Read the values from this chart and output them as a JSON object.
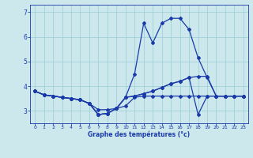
{
  "xlabel": "Graphe des températures (°c)",
  "background_color": "#cce8ec",
  "grid_color": "#99ccd4",
  "line_color": "#1a3aaa",
  "xlim": [
    -0.5,
    23.5
  ],
  "ylim": [
    2.5,
    7.3
  ],
  "yticks": [
    3,
    4,
    5,
    6,
    7
  ],
  "xticks": [
    0,
    1,
    2,
    3,
    4,
    5,
    6,
    7,
    8,
    9,
    10,
    11,
    12,
    13,
    14,
    15,
    16,
    17,
    18,
    19,
    20,
    21,
    22,
    23
  ],
  "line1_x": [
    0,
    1,
    2,
    3,
    4,
    5,
    6,
    7,
    8,
    9,
    10,
    11,
    12,
    13,
    14,
    15,
    16,
    17,
    18,
    19,
    20,
    21,
    22,
    23
  ],
  "line1_y": [
    3.8,
    3.65,
    3.6,
    3.55,
    3.5,
    3.45,
    3.3,
    3.05,
    3.05,
    3.1,
    3.55,
    3.6,
    3.7,
    3.8,
    3.95,
    4.1,
    4.2,
    4.35,
    4.4,
    4.4,
    3.6,
    3.6,
    3.6,
    3.6
  ],
  "line2_x": [
    0,
    1,
    2,
    3,
    4,
    5,
    6,
    7,
    8,
    9,
    10,
    11,
    12,
    13,
    14,
    15,
    16,
    17,
    18,
    19,
    20,
    21,
    22,
    23
  ],
  "line2_y": [
    3.8,
    3.65,
    3.6,
    3.55,
    3.5,
    3.45,
    3.3,
    2.85,
    2.9,
    3.1,
    3.55,
    4.5,
    6.55,
    5.75,
    6.55,
    6.75,
    6.75,
    6.3,
    5.15,
    4.35,
    3.6,
    3.6,
    3.6,
    3.6
  ],
  "line3_x": [
    0,
    1,
    2,
    3,
    4,
    5,
    6,
    7,
    8,
    9,
    10,
    11,
    12,
    13,
    14,
    15,
    16,
    17,
    18,
    19,
    20,
    21,
    22,
    23
  ],
  "line3_y": [
    3.8,
    3.65,
    3.6,
    3.55,
    3.5,
    3.45,
    3.3,
    2.85,
    2.9,
    3.1,
    3.2,
    3.55,
    3.6,
    3.6,
    3.6,
    3.6,
    3.6,
    3.6,
    3.6,
    3.6,
    3.6,
    3.6,
    3.6,
    3.6
  ],
  "line4_x": [
    0,
    1,
    2,
    3,
    4,
    5,
    6,
    7,
    8,
    9,
    10,
    11,
    12,
    13,
    14,
    15,
    16,
    17,
    18,
    19,
    20,
    21,
    22,
    23
  ],
  "line4_y": [
    3.8,
    3.65,
    3.6,
    3.55,
    3.5,
    3.45,
    3.3,
    2.85,
    2.9,
    3.1,
    3.55,
    3.6,
    3.7,
    3.8,
    3.95,
    4.1,
    4.2,
    4.35,
    2.85,
    3.6,
    3.6,
    3.6,
    3.6,
    3.6
  ]
}
